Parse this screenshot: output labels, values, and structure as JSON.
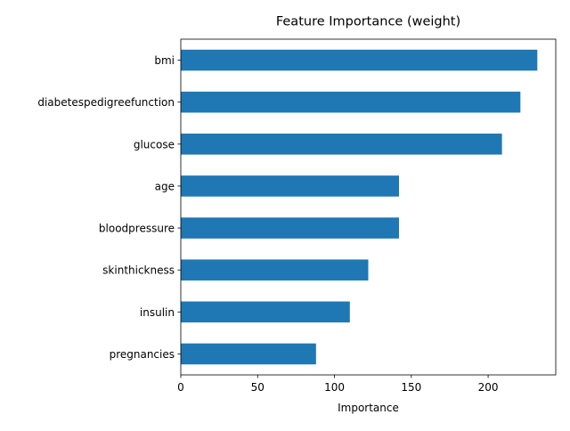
{
  "chart_data": {
    "type": "bar",
    "orientation": "horizontal",
    "title": "Feature Importance (weight)",
    "xlabel": "Importance",
    "ylabel": "",
    "categories": [
      "bmi",
      "diabetespedigreefunction",
      "glucose",
      "age",
      "bloodpressure",
      "skinthickness",
      "insulin",
      "pregnancies"
    ],
    "values": [
      232,
      221,
      209,
      142,
      142,
      122,
      110,
      88
    ],
    "xlim": [
      0,
      244
    ],
    "xticks": [
      0,
      50,
      100,
      150,
      200
    ],
    "bar_color": "#1f77b4",
    "grid": false,
    "legend": "none"
  }
}
